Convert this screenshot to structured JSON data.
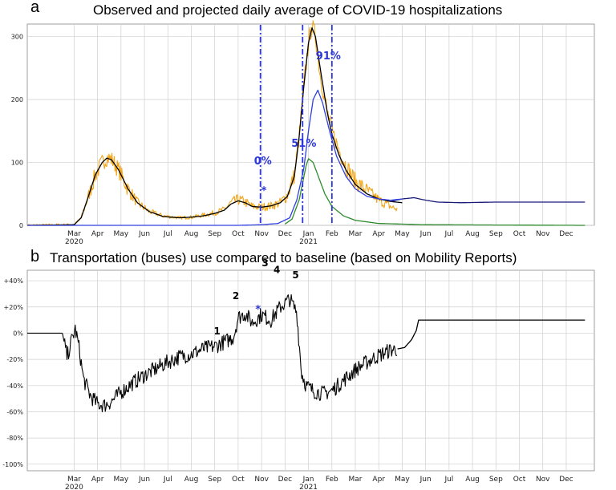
{
  "panel_a": {
    "letter": "a",
    "title": "Observed and projected daily average of COVID-19 hospitalizations"
  },
  "panel_b": {
    "letter": "b",
    "title": "Transportation (buses) use compared to baseline (based on Mobility Reports)"
  },
  "colors": {
    "observed": "#f2a516",
    "fit": "#000000",
    "projection": "#1a1a7a",
    "blue": "#3040e0",
    "green": "#2e8b2e",
    "vline": "#2a36d8",
    "grid": "#cfcfcf"
  },
  "chart_data": [
    {
      "type": "line",
      "title": "Observed and projected daily average of COVID-19 hospitalizations",
      "x_unit": "months since 2020-01-01",
      "xlim": [
        0,
        24.2
      ],
      "ylim": [
        0,
        320
      ],
      "yticks": [
        0,
        100,
        200,
        300
      ],
      "month_ticks": [
        {
          "label": "Mar",
          "x": 2
        },
        {
          "label": "Apr",
          "x": 3
        },
        {
          "label": "May",
          "x": 4
        },
        {
          "label": "Jun",
          "x": 5
        },
        {
          "label": "Jul",
          "x": 6
        },
        {
          "label": "Aug",
          "x": 7
        },
        {
          "label": "Sep",
          "x": 8
        },
        {
          "label": "Oct",
          "x": 9
        },
        {
          "label": "Nov",
          "x": 10
        },
        {
          "label": "Dec",
          "x": 11
        },
        {
          "label": "Jan",
          "x": 12
        },
        {
          "label": "Feb",
          "x": 13
        },
        {
          "label": "Mar",
          "x": 14
        },
        {
          "label": "Apr",
          "x": 15
        },
        {
          "label": "May",
          "x": 16
        },
        {
          "label": "Jun",
          "x": 17
        },
        {
          "label": "Jul",
          "x": 18
        },
        {
          "label": "Aug",
          "x": 19
        },
        {
          "label": "Sep",
          "x": 20
        },
        {
          "label": "Oct",
          "x": 21
        },
        {
          "label": "Nov",
          "x": 22
        },
        {
          "label": "Dec",
          "x": 23
        }
      ],
      "year_labels": [
        {
          "label": "2020",
          "x": 2
        },
        {
          "label": "2021",
          "x": 12
        }
      ],
      "series": [
        {
          "name": "observed",
          "color": "observed",
          "noise": 14,
          "points": [
            [
              0,
              0
            ],
            [
              2.0,
              1
            ],
            [
              2.3,
              12
            ],
            [
              2.6,
              45
            ],
            [
              2.9,
              80
            ],
            [
              3.2,
              100
            ],
            [
              3.4,
              108
            ],
            [
              3.6,
              105
            ],
            [
              3.9,
              88
            ],
            [
              4.3,
              58
            ],
            [
              4.7,
              36
            ],
            [
              5.2,
              22
            ],
            [
              5.8,
              15
            ],
            [
              6.5,
              12
            ],
            [
              7.0,
              13
            ],
            [
              7.5,
              16
            ],
            [
              8.0,
              20
            ],
            [
              8.4,
              25
            ],
            [
              8.7,
              36
            ],
            [
              9.0,
              41
            ],
            [
              9.3,
              37
            ],
            [
              9.6,
              30
            ],
            [
              10.0,
              29
            ],
            [
              10.4,
              31
            ],
            [
              10.8,
              36
            ],
            [
              11.1,
              48
            ],
            [
              11.4,
              80
            ],
            [
              11.6,
              140
            ],
            [
              11.8,
              220
            ],
            [
              12.0,
              290
            ],
            [
              12.15,
              318
            ],
            [
              12.3,
              300
            ],
            [
              12.5,
              240
            ],
            [
              12.8,
              180
            ],
            [
              13.0,
              150
            ],
            [
              13.3,
              120
            ],
            [
              13.6,
              95
            ],
            [
              14.0,
              70
            ],
            [
              14.5,
              55
            ],
            [
              15.0,
              40
            ],
            [
              15.5,
              30
            ],
            [
              15.8,
              25
            ]
          ]
        },
        {
          "name": "model_fit",
          "color": "fit",
          "noise": 0,
          "points": [
            [
              0,
              0
            ],
            [
              2.0,
              1
            ],
            [
              2.3,
              12
            ],
            [
              2.6,
              45
            ],
            [
              2.9,
              80
            ],
            [
              3.2,
              100
            ],
            [
              3.4,
              107
            ],
            [
              3.6,
              104
            ],
            [
              3.9,
              88
            ],
            [
              4.3,
              58
            ],
            [
              4.7,
              36
            ],
            [
              5.2,
              22
            ],
            [
              5.8,
              14
            ],
            [
              6.5,
              12
            ],
            [
              7.0,
              13
            ],
            [
              7.5,
              15
            ],
            [
              8.0,
              19
            ],
            [
              8.4,
              24
            ],
            [
              8.7,
              34
            ],
            [
              9.0,
              39
            ],
            [
              9.3,
              36
            ],
            [
              9.6,
              30
            ],
            [
              10.0,
              29
            ],
            [
              10.4,
              31
            ],
            [
              10.8,
              36
            ],
            [
              11.1,
              46
            ],
            [
              11.4,
              78
            ],
            [
              11.6,
              140
            ],
            [
              11.8,
              220
            ],
            [
              12.0,
              290
            ],
            [
              12.15,
              314
            ],
            [
              12.3,
              300
            ],
            [
              12.5,
              250
            ],
            [
              12.8,
              180
            ],
            [
              13.0,
              145
            ],
            [
              13.3,
              112
            ],
            [
              13.6,
              88
            ],
            [
              14.0,
              65
            ],
            [
              14.5,
              50
            ],
            [
              15.0,
              42
            ],
            [
              15.5,
              38
            ],
            [
              16.0,
              36
            ]
          ]
        },
        {
          "name": "projection",
          "color": "projection",
          "noise": 0,
          "points": [
            [
              15.5,
              38
            ],
            [
              16.0,
              42
            ],
            [
              16.5,
              44
            ],
            [
              17.0,
              40
            ],
            [
              17.5,
              37
            ],
            [
              18.5,
              36
            ],
            [
              20,
              37
            ],
            [
              22,
              37
            ],
            [
              23.8,
              37
            ]
          ]
        },
        {
          "name": "blue_scenario",
          "color": "blue",
          "noise": 0,
          "points": [
            [
              0,
              0
            ],
            [
              9,
              0
            ],
            [
              10,
              1
            ],
            [
              10.7,
              3
            ],
            [
              11.2,
              12
            ],
            [
              11.5,
              40
            ],
            [
              11.8,
              90
            ],
            [
              12.0,
              150
            ],
            [
              12.2,
              200
            ],
            [
              12.4,
              215
            ],
            [
              12.6,
              195
            ],
            [
              12.9,
              150
            ],
            [
              13.2,
              110
            ],
            [
              13.6,
              78
            ],
            [
              14.0,
              58
            ],
            [
              14.5,
              46
            ],
            [
              15.0,
              42
            ],
            [
              15.5,
              40
            ],
            [
              16.0,
              42
            ]
          ]
        },
        {
          "name": "green_scenario",
          "color": "green",
          "noise": 0,
          "points": [
            [
              11.0,
              2
            ],
            [
              11.3,
              10
            ],
            [
              11.6,
              40
            ],
            [
              11.9,
              95
            ],
            [
              12.0,
              106
            ],
            [
              12.2,
              100
            ],
            [
              12.4,
              80
            ],
            [
              12.7,
              50
            ],
            [
              13.0,
              30
            ],
            [
              13.5,
              15
            ],
            [
              14.0,
              8
            ],
            [
              15.0,
              3
            ],
            [
              17.0,
              1
            ],
            [
              23.8,
              0
            ]
          ]
        }
      ],
      "vlines": [
        {
          "x": 9.95,
          "label": "0%"
        },
        {
          "x": 11.75,
          "label": "51%"
        },
        {
          "x": 13.0,
          "label": "91%"
        }
      ],
      "annotations": [
        {
          "text": "*",
          "x": 10.1,
          "y": 65
        }
      ]
    },
    {
      "type": "line",
      "title": "Transportation (buses) use compared to baseline (based on Mobility Reports)",
      "x_unit": "months since 2020-01-01",
      "xlim": [
        0,
        24.2
      ],
      "ylim": [
        -105,
        48
      ],
      "yticks": [
        40,
        20,
        0,
        -20,
        -40,
        -60,
        -80,
        -100
      ],
      "ytick_labels": [
        "+40%",
        "+20%",
        "0%",
        "-20%",
        "-40%",
        "-60%",
        "-80%",
        "-100%"
      ],
      "month_ticks": [
        {
          "label": "Mar",
          "x": 2
        },
        {
          "label": "Apr",
          "x": 3
        },
        {
          "label": "May",
          "x": 4
        },
        {
          "label": "Jun",
          "x": 5
        },
        {
          "label": "Jul",
          "x": 6
        },
        {
          "label": "Aug",
          "x": 7
        },
        {
          "label": "Sep",
          "x": 8
        },
        {
          "label": "Oct",
          "x": 9
        },
        {
          "label": "Nov",
          "x": 10
        },
        {
          "label": "Dec",
          "x": 11
        },
        {
          "label": "Jan",
          "x": 12
        },
        {
          "label": "Feb",
          "x": 13
        },
        {
          "label": "Mar",
          "x": 14
        },
        {
          "label": "Apr",
          "x": 15
        },
        {
          "label": "May",
          "x": 16
        },
        {
          "label": "Jun",
          "x": 17
        },
        {
          "label": "Jul",
          "x": 18
        },
        {
          "label": "Aug",
          "x": 19
        },
        {
          "label": "Sep",
          "x": 20
        },
        {
          "label": "Oct",
          "x": 21
        },
        {
          "label": "Nov",
          "x": 22
        },
        {
          "label": "Dec",
          "x": 23
        }
      ],
      "year_labels": [
        {
          "label": "2020",
          "x": 2
        },
        {
          "label": "2021",
          "x": 12
        }
      ],
      "series": [
        {
          "name": "bus_mobility_observed",
          "color": "fit",
          "noise": 6,
          "points": [
            [
              0,
              0
            ],
            [
              1.5,
              0
            ],
            [
              1.7,
              -18
            ],
            [
              1.9,
              -5
            ],
            [
              2.05,
              3
            ],
            [
              2.2,
              -10
            ],
            [
              2.4,
              -35
            ],
            [
              2.7,
              -48
            ],
            [
              3.0,
              -54
            ],
            [
              3.3,
              -55
            ],
            [
              3.6,
              -52
            ],
            [
              4.0,
              -45
            ],
            [
              4.5,
              -38
            ],
            [
              5.0,
              -32
            ],
            [
              5.5,
              -27
            ],
            [
              6.0,
              -22
            ],
            [
              6.5,
              -18
            ],
            [
              7.0,
              -16
            ],
            [
              7.5,
              -12
            ],
            [
              8.0,
              -10
            ],
            [
              8.5,
              -6
            ],
            [
              8.8,
              -3
            ],
            [
              9.0,
              12
            ],
            [
              9.3,
              15
            ],
            [
              9.6,
              8
            ],
            [
              10.0,
              14
            ],
            [
              10.4,
              10
            ],
            [
              10.8,
              20
            ],
            [
              11.2,
              26
            ],
            [
              11.5,
              16
            ],
            [
              11.7,
              -30
            ],
            [
              11.9,
              -40
            ],
            [
              12.2,
              -44
            ],
            [
              12.6,
              -46
            ],
            [
              13.0,
              -44
            ],
            [
              13.5,
              -36
            ],
            [
              14.0,
              -28
            ],
            [
              14.5,
              -22
            ],
            [
              15.0,
              -17
            ],
            [
              15.5,
              -13
            ],
            [
              15.8,
              -12
            ]
          ]
        },
        {
          "name": "bus_mobility_projection",
          "color": "fit",
          "noise": 0,
          "points": [
            [
              15.8,
              -12
            ],
            [
              16.1,
              -11
            ],
            [
              16.4,
              -5
            ],
            [
              16.6,
              2
            ],
            [
              16.7,
              10
            ],
            [
              18,
              10
            ],
            [
              20,
              10
            ],
            [
              22,
              10
            ],
            [
              23.8,
              10
            ]
          ]
        }
      ],
      "numbered_markers": [
        {
          "text": "1",
          "x": 8.1,
          "y": -1
        },
        {
          "text": "2",
          "x": 8.9,
          "y": 26
        },
        {
          "text": "3",
          "x": 10.15,
          "y": 51
        },
        {
          "text": "4",
          "x": 10.65,
          "y": 46
        },
        {
          "text": "5",
          "x": 11.45,
          "y": 42
        }
      ],
      "annotations": [
        {
          "text": "*",
          "x": 9.85,
          "y": 23
        }
      ]
    }
  ]
}
